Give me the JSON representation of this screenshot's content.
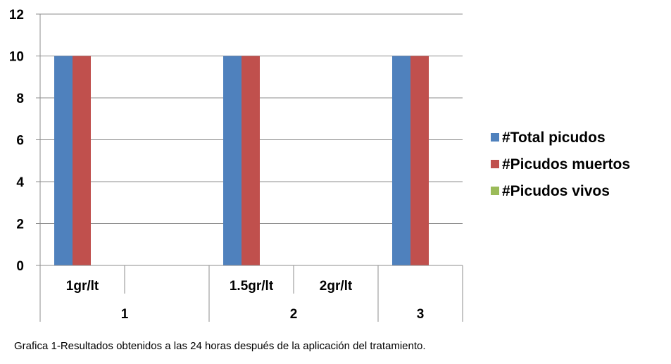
{
  "chart_data": {
    "type": "bar",
    "groups": [
      {
        "label": "1",
        "categories": [
          "1gr/lt",
          ""
        ]
      },
      {
        "label": "2",
        "categories": [
          "1.5gr/lt",
          "2gr/lt"
        ]
      },
      {
        "label": "3",
        "categories": [
          ""
        ]
      }
    ],
    "categories": [
      "1gr/lt",
      "",
      "1.5gr/lt",
      "2gr/lt",
      ""
    ],
    "series": [
      {
        "name": "#Total picudos",
        "color": "#4f81bd",
        "values": [
          10,
          null,
          10,
          null,
          10
        ]
      },
      {
        "name": "#Picudos muertos",
        "color": "#c0504d",
        "values": [
          10,
          null,
          10,
          null,
          10
        ]
      },
      {
        "name": "#Picudos vivos",
        "color": "#9bbb59",
        "values": [
          null,
          null,
          null,
          null,
          null
        ]
      }
    ],
    "yticks": [
      0,
      2,
      4,
      6,
      8,
      10,
      12
    ],
    "ylim": [
      0,
      12
    ],
    "grid": true,
    "legend_position": "right"
  },
  "caption": "Grafica 1-Resultados obtenidos a las 24 horas después de la aplicación del tratamiento."
}
